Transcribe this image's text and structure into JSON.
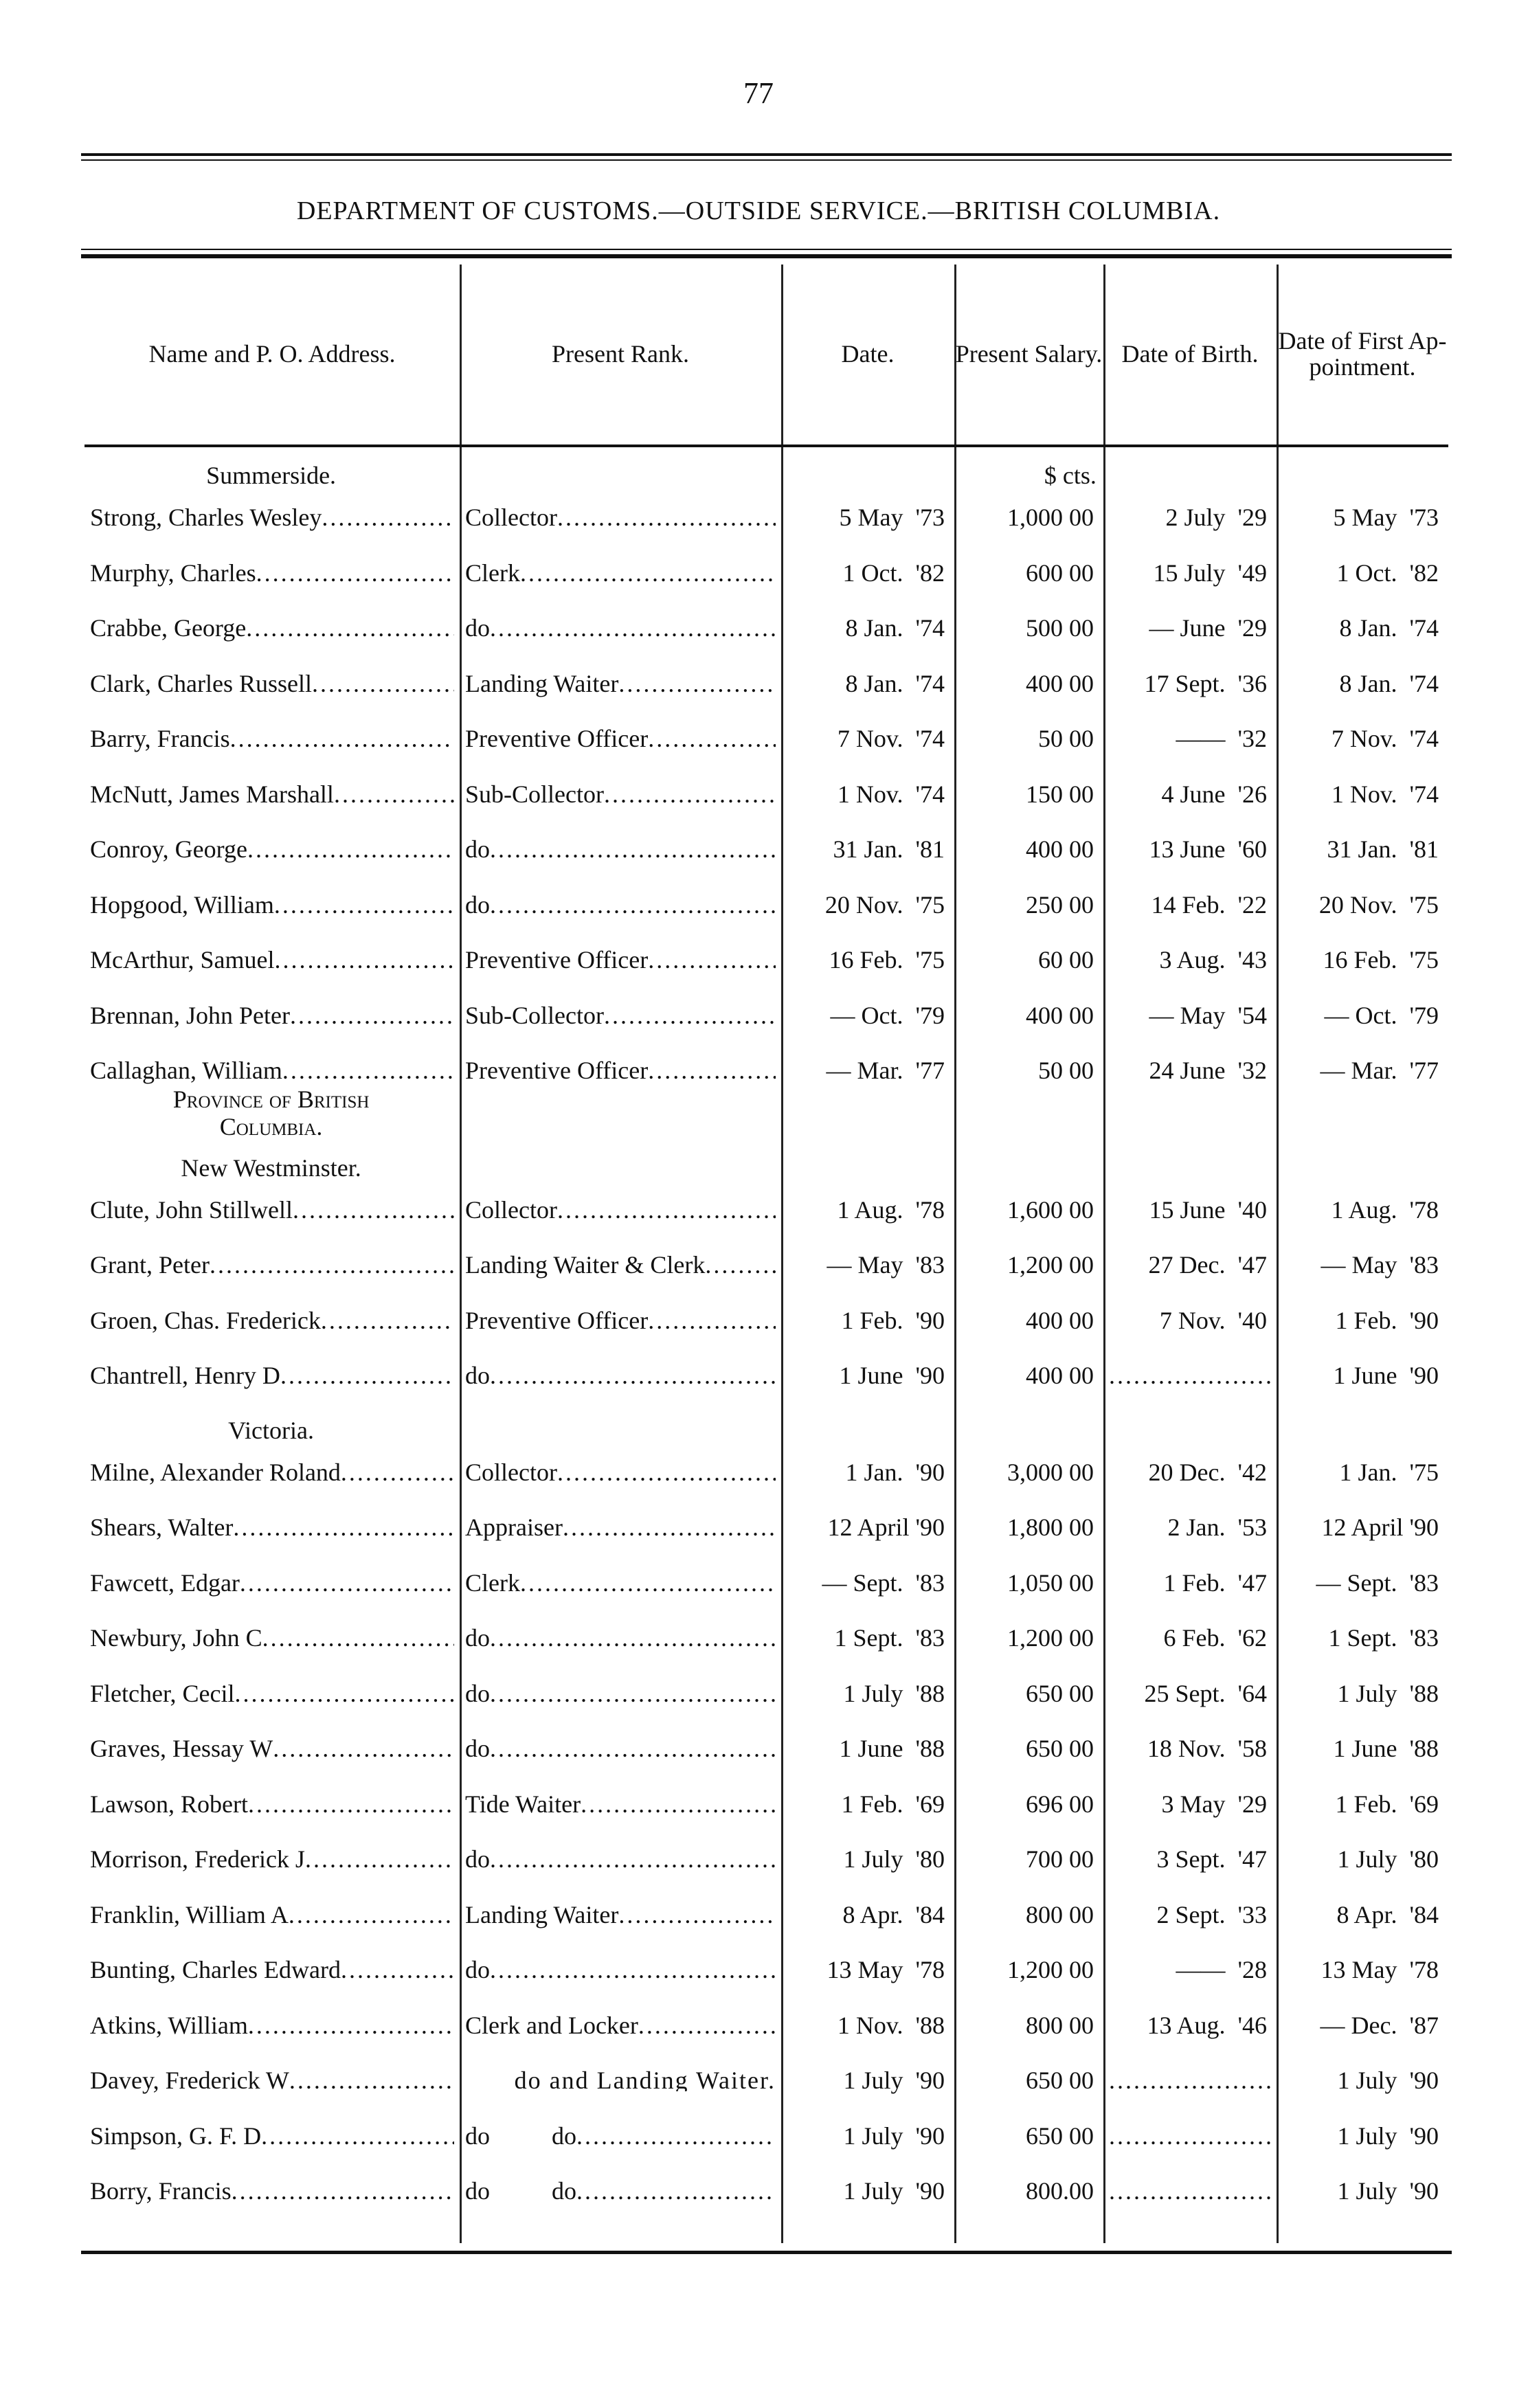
{
  "page_number": "77",
  "title": "DEPARTMENT OF CUSTOMS.—OUTSIDE SERVICE.—BRITISH COLUMBIA.",
  "headers": [
    "Name and P. O. Address.",
    "Present Rank.",
    "Date.",
    "Present Salary.",
    "Date of Birth.",
    "Date of First Ap-pointment."
  ],
  "currency_label": "$  cts.",
  "rows": [
    {
      "section": "Summerside.",
      "small_caps": false
    },
    {
      "name": "Strong, Charles Wesley",
      "rank": "Collector",
      "date": "5 May  '73",
      "salary": "1,000 00",
      "birth": "2 July  '29",
      "first": "5 May  '73"
    },
    {
      "name": "Murphy, Charles",
      "rank": "Clerk",
      "date": "1 Oct.  '82",
      "salary": "600 00",
      "birth": "15 July  '49",
      "first": "1 Oct.  '82"
    },
    {
      "name": "Crabbe, George",
      "rank": "do",
      "date": "8 Jan.  '74",
      "salary": "500 00",
      "birth": "— June  '29",
      "first": "8 Jan.  '74"
    },
    {
      "name": "Clark, Charles Russell",
      "rank": "Landing Waiter",
      "date": "8 Jan.  '74",
      "salary": "400 00",
      "birth": "17 Sept.  '36",
      "first": "8 Jan.  '74"
    },
    {
      "name": "Barry, Francis",
      "rank": "Preventive Officer",
      "date": "7 Nov.  '74",
      "salary": "50 00",
      "birth": "——  '32",
      "first": "7 Nov.  '74"
    },
    {
      "name": "McNutt, James Marshall",
      "rank": "Sub-Collector",
      "date": "1 Nov.  '74",
      "salary": "150 00",
      "birth": "4 June  '26",
      "first": "1 Nov.  '74"
    },
    {
      "name": "Conroy, George",
      "rank": "do",
      "date": "31 Jan.  '81",
      "salary": "400 00",
      "birth": "13 June  '60",
      "first": "31 Jan.  '81"
    },
    {
      "name": "Hopgood, William",
      "rank": "do",
      "date": "20 Nov.  '75",
      "salary": "250 00",
      "birth": "14 Feb.  '22",
      "first": "20 Nov.  '75"
    },
    {
      "name": "McArthur, Samuel",
      "rank": "Preventive Officer",
      "date": "16 Feb.  '75",
      "salary": "60 00",
      "birth": "3 Aug.  '43",
      "first": "16 Feb.  '75"
    },
    {
      "name": "Brennan, John Peter",
      "rank": "Sub-Collector",
      "date": "— Oct.  '79",
      "salary": "400 00",
      "birth": "— May  '54",
      "first": "— Oct.  '79"
    },
    {
      "name": "Callaghan, William",
      "rank": "Preventive Officer",
      "date": "— Mar.  '77",
      "salary": "50 00",
      "birth": "24 June  '32",
      "first": "— Mar.  '77"
    },
    {
      "section": "Province of British Columbia.",
      "small_caps": true
    },
    {
      "section": "New Westminster.",
      "small_caps": false
    },
    {
      "name": "Clute, John Stillwell",
      "rank": "Collector",
      "date": "1 Aug.  '78",
      "salary": "1,600 00",
      "birth": "15 June  '40",
      "first": "1 Aug.  '78"
    },
    {
      "name": "Grant, Peter",
      "rank": "Landing Waiter & Clerk",
      "date": "— May  '83",
      "salary": "1,200 00",
      "birth": "27 Dec.  '47",
      "first": "— May  '83"
    },
    {
      "name": "Groen, Chas. Frederick",
      "rank": "Preventive Officer",
      "date": "1 Feb.  '90",
      "salary": "400 00",
      "birth": "7 Nov.  '40",
      "first": "1 Feb.  '90"
    },
    {
      "name": "Chantrell, Henry D",
      "rank": "do",
      "date": "1 June  '90",
      "salary": "400 00",
      "birth": "",
      "first": "1 June  '90"
    },
    {
      "section": "Victoria.",
      "small_caps": false
    },
    {
      "name": "Milne, Alexander Roland",
      "rank": "Collector",
      "date": "1 Jan.  '90",
      "salary": "3,000 00",
      "birth": "20 Dec.  '42",
      "first": "1 Jan.  '75"
    },
    {
      "name": "Shears, Walter",
      "rank": "Appraiser",
      "date": "12 April '90",
      "salary": "1,800 00",
      "birth": "2 Jan.  '53",
      "first": "12 April '90"
    },
    {
      "name": "Fawcett, Edgar",
      "rank": "Clerk",
      "date": "— Sept.  '83",
      "salary": "1,050 00",
      "birth": "1 Feb.  '47",
      "first": "— Sept.  '83"
    },
    {
      "name": "Newbury, John C",
      "rank": "do",
      "date": "1 Sept.  '83",
      "salary": "1,200 00",
      "birth": "6 Feb.  '62",
      "first": "1 Sept.  '83"
    },
    {
      "name": "Fletcher, Cecil",
      "rank": "do",
      "date": "1 July  '88",
      "salary": "650 00",
      "birth": "25 Sept.  '64",
      "first": "1 July  '88"
    },
    {
      "name": "Graves, Hessay W",
      "rank": "do",
      "date": "1 June  '88",
      "salary": "650 00",
      "birth": "18 Nov.  '58",
      "first": "1 June  '88"
    },
    {
      "name": "Lawson, Robert",
      "rank": "Tide Waiter",
      "date": "1 Feb.  '69",
      "salary": "696 00",
      "birth": "3 May  '29",
      "first": "1 Feb.  '69"
    },
    {
      "name": "Morrison, Frederick J",
      "rank": "do",
      "date": "1 July  '80",
      "salary": "700 00",
      "birth": "3 Sept.  '47",
      "first": "1 July  '80"
    },
    {
      "name": "Franklin, William A",
      "rank": "Landing Waiter",
      "date": "8 Apr.  '84",
      "salary": "800 00",
      "birth": "2 Sept.  '33",
      "first": "8 Apr.  '84"
    },
    {
      "name": "Bunting, Charles Edward",
      "rank": "do",
      "date": "13 May  '78",
      "salary": "1,200 00",
      "birth": "——  '28",
      "first": "13 May  '78"
    },
    {
      "name": "Atkins, William",
      "rank": "Clerk and Locker",
      "date": "1 Nov.  '88",
      "salary": "800 00",
      "birth": "13 Aug.  '46",
      "first": "— Dec.  '87"
    },
    {
      "name": "Davey, Frederick W",
      "rank": "do and Landing Waiter.",
      "date": "1 July  '90",
      "salary": "650 00",
      "birth": "",
      "first": "1 July  '90"
    },
    {
      "name": "Simpson, G. F. D",
      "rank": "do          do",
      "date": "1 July  '90",
      "salary": "650 00",
      "birth": "",
      "first": "1 July  '90"
    },
    {
      "name": "Borry, Francis",
      "rank": "do          do",
      "date": "1 July  '90",
      "salary": "800.00",
      "birth": "",
      "first": "1 July  '90"
    }
  ]
}
